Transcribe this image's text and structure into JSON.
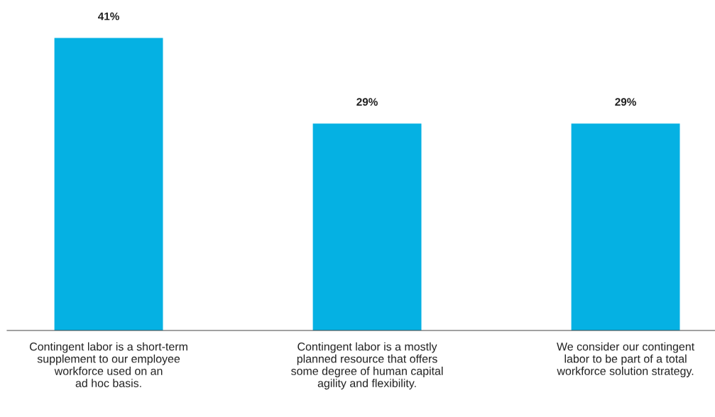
{
  "chart_data": {
    "type": "bar",
    "categories": [
      "Contingent labor is a short-term\nsupplement to our employee\nworkforce used on an\nad hoc basis.",
      "Contingent labor is a mostly\nplanned resource that offers\nsome degree of human capital\nagility and flexibility.",
      "We consider our contingent\nlabor to be part of a total\nworkforce solution strategy."
    ],
    "values": [
      41,
      29,
      29
    ],
    "value_labels": [
      "41%",
      "29%",
      "29%"
    ],
    "color": "#05b1e3",
    "tick_labels": "x",
    "grid": false,
    "legend": false
  }
}
